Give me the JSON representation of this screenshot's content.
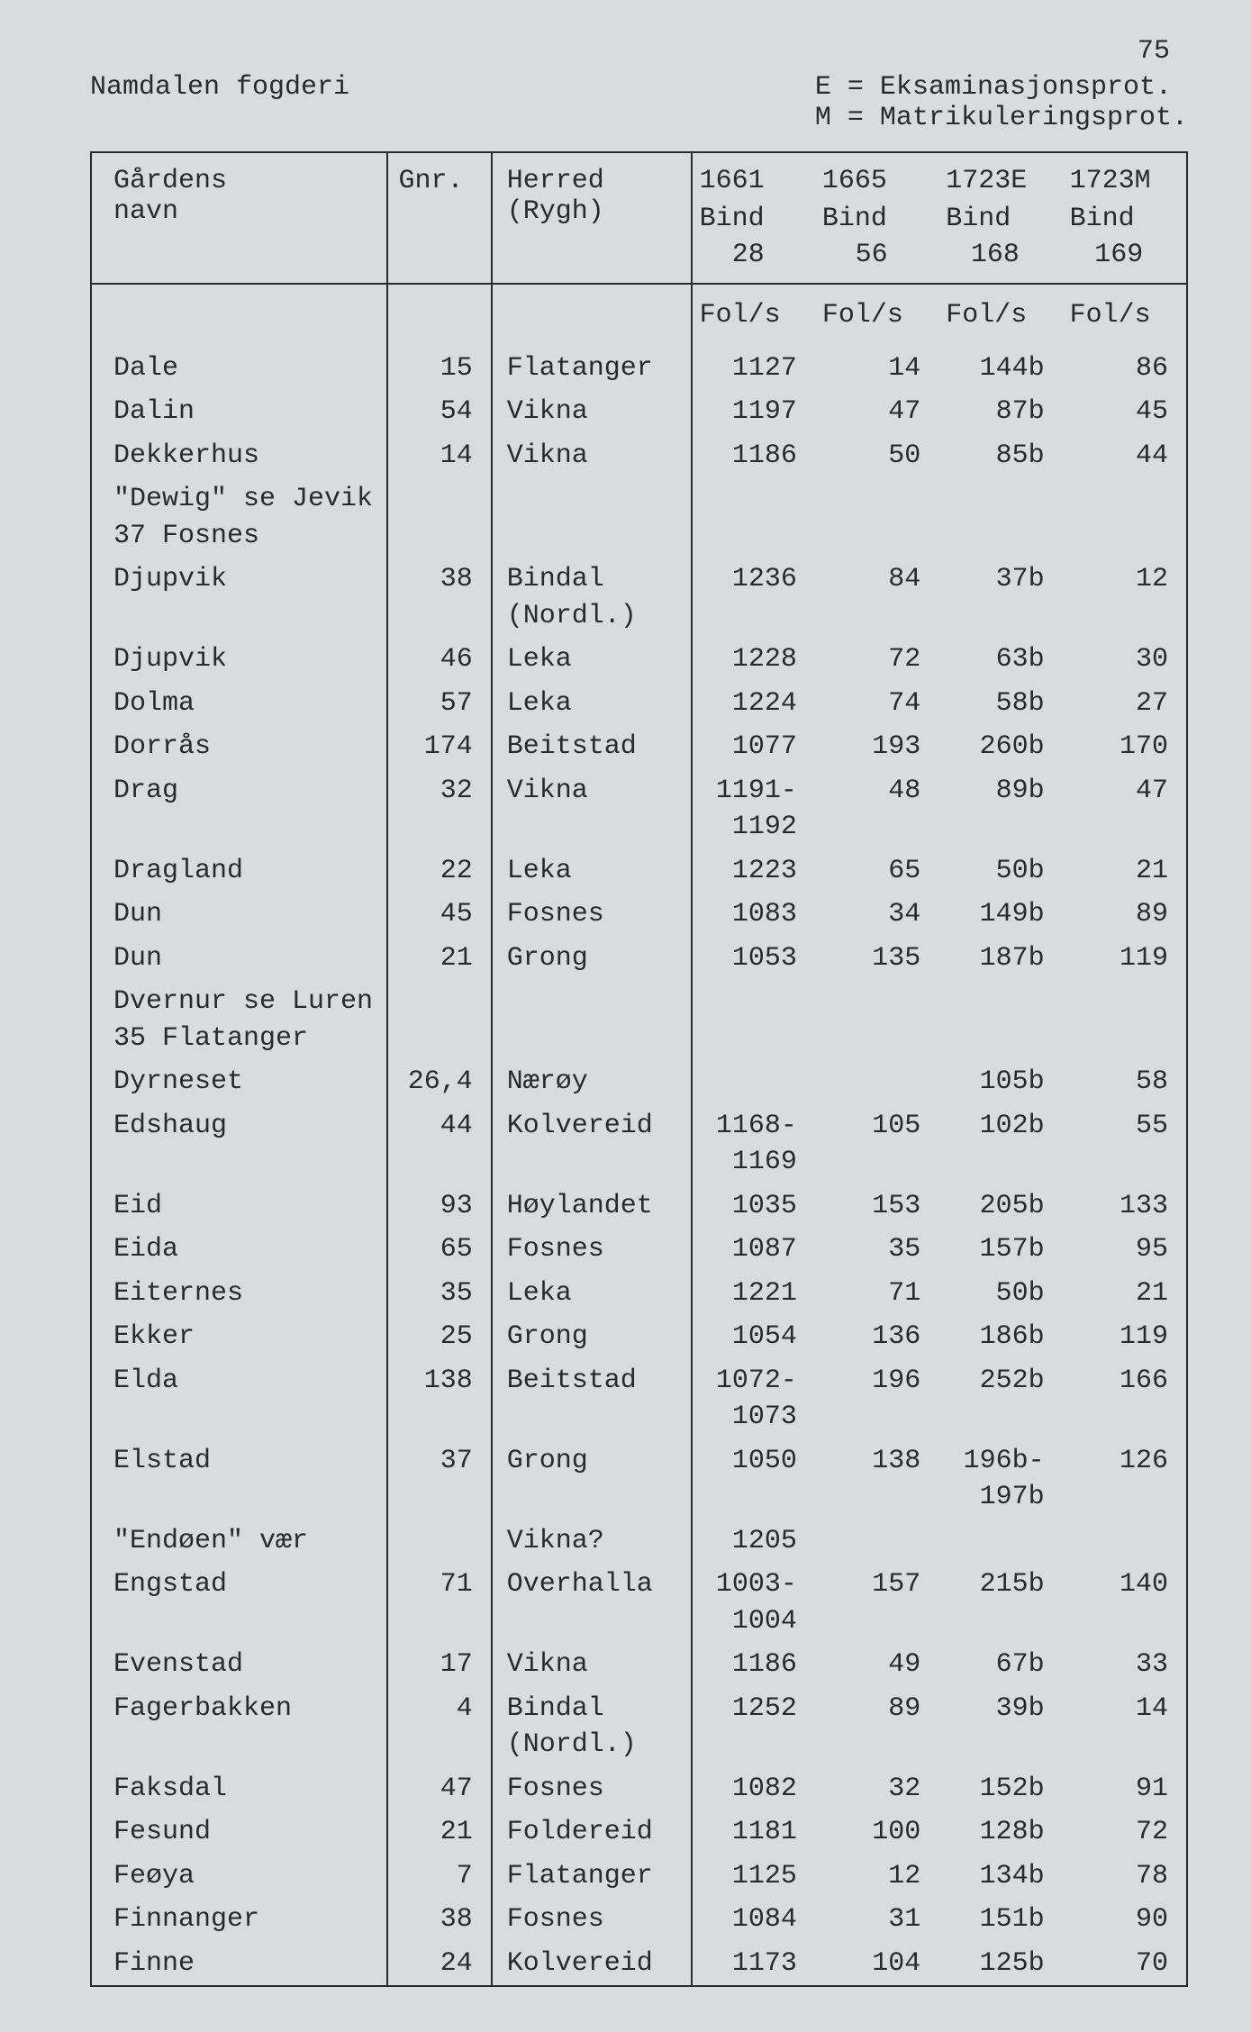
{
  "page_number": "75",
  "header_left": "Namdalen fogderi",
  "header_right_line1": "E = Eksaminasjonsprot.",
  "header_right_line2": "M = Matrikuleringsprot.",
  "columns": {
    "name_label1": "Gårdens",
    "name_label2": "navn",
    "gnr_label": "Gnr.",
    "herred_label1": "Herred",
    "herred_label2": "(Rygh)",
    "c1_label1": "1661",
    "c1_label2": "Bind",
    "c1_label3": "28",
    "c2_label1": "1665",
    "c2_label2": "Bind",
    "c2_label3": "56",
    "c3_label1": "1723E",
    "c3_label2": "Bind",
    "c3_label3": "168",
    "c4_label1": "1723M",
    "c4_label2": "Bind",
    "c4_label3": "169",
    "fols": "Fol/s"
  },
  "rows": [
    {
      "name": "Dale",
      "gnr": "15",
      "herred": "Flatanger",
      "c1": "1127",
      "c2": "14",
      "c3": "144b",
      "c4": "86"
    },
    {
      "name": "Dalin",
      "gnr": "54",
      "herred": "Vikna",
      "c1": "1197",
      "c2": "47",
      "c3": "87b",
      "c4": "45"
    },
    {
      "name": "Dekkerhus",
      "gnr": "14",
      "herred": "Vikna",
      "c1": "1186",
      "c2": "50",
      "c3": "85b",
      "c4": "44"
    },
    {
      "name": "\"Dewig\" se Jevik\n37 Fosnes",
      "gnr": "",
      "herred": "",
      "c1": "",
      "c2": "",
      "c3": "",
      "c4": ""
    },
    {
      "name": "Djupvik",
      "gnr": "38",
      "herred": "Bindal\n(Nordl.)",
      "c1": "1236",
      "c2": "84",
      "c3": "37b",
      "c4": "12"
    },
    {
      "name": "Djupvik",
      "gnr": "46",
      "herred": "Leka",
      "c1": "1228",
      "c2": "72",
      "c3": "63b",
      "c4": "30"
    },
    {
      "name": "Dolma",
      "gnr": "57",
      "herred": "Leka",
      "c1": "1224",
      "c2": "74",
      "c3": "58b",
      "c4": "27"
    },
    {
      "name": "Dorrås",
      "gnr": "174",
      "herred": "Beitstad",
      "c1": "1077",
      "c2": "193",
      "c3": "260b",
      "c4": "170"
    },
    {
      "name": "Drag",
      "gnr": "32",
      "herred": "Vikna",
      "c1": "1191-\n1192",
      "c2": "48",
      "c3": "89b",
      "c4": "47"
    },
    {
      "name": "Dragland",
      "gnr": "22",
      "herred": "Leka",
      "c1": "1223",
      "c2": "65",
      "c3": "50b",
      "c4": "21"
    },
    {
      "name": "Dun",
      "gnr": "45",
      "herred": "Fosnes",
      "c1": "1083",
      "c2": "34",
      "c3": "149b",
      "c4": "89"
    },
    {
      "name": "Dun",
      "gnr": "21",
      "herred": "Grong",
      "c1": "1053",
      "c2": "135",
      "c3": "187b",
      "c4": "119"
    },
    {
      "name": "Dvernur se Luren\n35 Flatanger",
      "gnr": "",
      "herred": "",
      "c1": "",
      "c2": "",
      "c3": "",
      "c4": ""
    },
    {
      "name": "Dyrneset",
      "gnr": "26,4",
      "herred": "Nærøy",
      "c1": "",
      "c2": "",
      "c3": "105b",
      "c4": "58"
    },
    {
      "name": "Edshaug",
      "gnr": "44",
      "herred": "Kolvereid",
      "c1": "1168-\n1169",
      "c2": "105",
      "c3": "102b",
      "c4": "55"
    },
    {
      "name": "Eid",
      "gnr": "93",
      "herred": "Høylandet",
      "c1": "1035",
      "c2": "153",
      "c3": "205b",
      "c4": "133"
    },
    {
      "name": "Eida",
      "gnr": "65",
      "herred": "Fosnes",
      "c1": "1087",
      "c2": "35",
      "c3": "157b",
      "c4": "95"
    },
    {
      "name": "Eiternes",
      "gnr": "35",
      "herred": "Leka",
      "c1": "1221",
      "c2": "71",
      "c3": "50b",
      "c4": "21"
    },
    {
      "name": "Ekker",
      "gnr": "25",
      "herred": "Grong",
      "c1": "1054",
      "c2": "136",
      "c3": "186b",
      "c4": "119"
    },
    {
      "name": "Elda",
      "gnr": "138",
      "herred": "Beitstad",
      "c1": "1072-\n1073",
      "c2": "196",
      "c3": "252b",
      "c4": "166"
    },
    {
      "name": "Elstad",
      "gnr": "37",
      "herred": "Grong",
      "c1": "1050",
      "c2": "138",
      "c3": "196b-\n197b",
      "c4": "126"
    },
    {
      "name": "\"Endøen\" vær",
      "gnr": "",
      "herred": "Vikna?",
      "c1": "1205",
      "c2": "",
      "c3": "",
      "c4": ""
    },
    {
      "name": "Engstad",
      "gnr": "71",
      "herred": "Overhalla",
      "c1": "1003-\n1004",
      "c2": "157",
      "c3": "215b",
      "c4": "140"
    },
    {
      "name": "Evenstad",
      "gnr": "17",
      "herred": "Vikna",
      "c1": "1186",
      "c2": "49",
      "c3": "67b",
      "c4": "33"
    },
    {
      "name": "Fagerbakken",
      "gnr": "4",
      "herred": "Bindal\n(Nordl.)",
      "c1": "1252",
      "c2": "89",
      "c3": "39b",
      "c4": "14"
    },
    {
      "name": "Faksdal",
      "gnr": "47",
      "herred": "Fosnes",
      "c1": "1082",
      "c2": "32",
      "c3": "152b",
      "c4": "91"
    },
    {
      "name": "Fesund",
      "gnr": "21",
      "herred": "Foldereid",
      "c1": "1181",
      "c2": "100",
      "c3": "128b",
      "c4": "72"
    },
    {
      "name": "Feøya",
      "gnr": "7",
      "herred": "Flatanger",
      "c1": "1125",
      "c2": "12",
      "c3": "134b",
      "c4": "78"
    },
    {
      "name": "Finnanger",
      "gnr": "38",
      "herred": "Fosnes",
      "c1": "1084",
      "c2": "31",
      "c3": "151b",
      "c4": "90"
    },
    {
      "name": "Finne",
      "gnr": "24",
      "herred": "Kolvereid",
      "c1": "1173",
      "c2": "104",
      "c3": "125b",
      "c4": "70"
    }
  ]
}
